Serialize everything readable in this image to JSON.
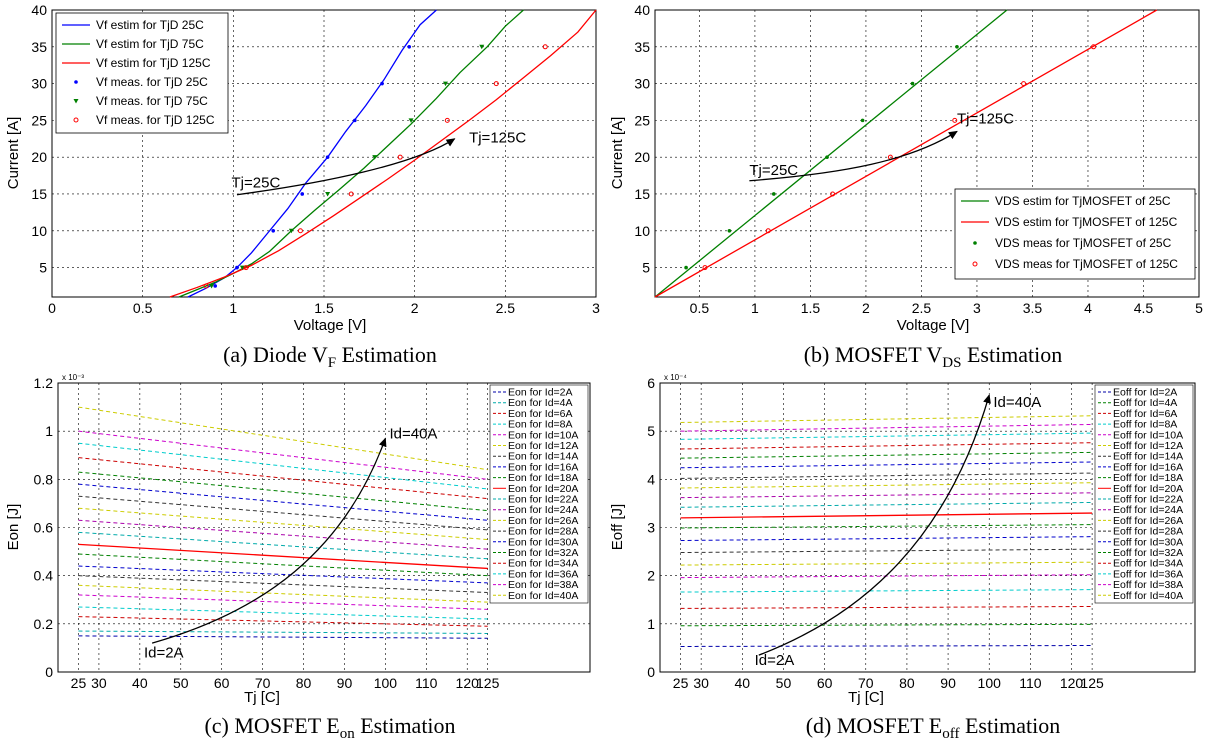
{
  "chart_data": [
    {
      "id": "a",
      "type": "line",
      "caption": "(a) Diode VF Estimation",
      "caption_main": "(a) Diode V",
      "caption_sub": "F",
      "caption_tail": " Estimation",
      "xlabel": "Voltage [V]",
      "ylabel": "Current [A]",
      "xlim": [
        0,
        3
      ],
      "ylim": [
        1,
        40
      ],
      "xticks": [
        "0",
        "0.5",
        "1",
        "1.5",
        "2",
        "2.5",
        "3"
      ],
      "yticks": [
        "5",
        "10",
        "15",
        "20",
        "25",
        "30",
        "35",
        "40"
      ],
      "grid": true,
      "legend_position": "top-left",
      "series": [
        {
          "name": "Vf estim for TjD 25C",
          "style": "line",
          "color": "#0000ff",
          "x": [
            0.75,
            0.85,
            0.95,
            1.02,
            1.1,
            1.2,
            1.3,
            1.4,
            1.52,
            1.62,
            1.73,
            1.83,
            1.93,
            2.03,
            2.12
          ],
          "y": [
            1,
            2.2,
            3.6,
            5,
            7,
            10,
            13,
            16.5,
            20,
            23.5,
            27,
            30.5,
            34.5,
            38,
            40
          ]
        },
        {
          "name": "Vf estim for TjD 75C",
          "style": "line",
          "color": "#008000",
          "x": [
            0.7,
            0.8,
            0.9,
            1.0,
            1.1,
            1.2,
            1.32,
            1.45,
            1.58,
            1.72,
            1.85,
            1.98,
            2.12,
            2.25,
            2.4,
            2.5,
            2.6
          ],
          "y": [
            1,
            2.0,
            3.0,
            4.2,
            5.5,
            7.2,
            10,
            12.8,
            15.5,
            18.5,
            21.5,
            24.5,
            28,
            31.5,
            35,
            37.8,
            40
          ]
        },
        {
          "name": "Vf estim for TjD 125C",
          "style": "line",
          "color": "#ff0000",
          "x": [
            0.65,
            0.8,
            0.95,
            1.1,
            1.25,
            1.4,
            1.55,
            1.7,
            1.85,
            2.0,
            2.15,
            2.3,
            2.45,
            2.6,
            2.75,
            2.9,
            3.0
          ],
          "y": [
            1,
            2.3,
            3.7,
            5.3,
            7.3,
            9.6,
            12,
            14.5,
            17,
            19.6,
            22.3,
            25,
            27.8,
            30.8,
            33.8,
            37,
            40
          ]
        },
        {
          "name": "Vf meas. for TjD 25C",
          "style": "dot",
          "color": "#0000ff",
          "x": [
            0.9,
            1.02,
            1.22,
            1.38,
            1.52,
            1.67,
            1.82,
            1.97
          ],
          "y": [
            2.5,
            5,
            10,
            15,
            20,
            25,
            30,
            35
          ]
        },
        {
          "name": "Vf meas. for TjD 75C",
          "style": "triangle",
          "color": "#008000",
          "x": [
            0.88,
            1.05,
            1.32,
            1.52,
            1.78,
            1.98,
            2.17,
            2.37
          ],
          "y": [
            2.5,
            5,
            10,
            15,
            20,
            25,
            30,
            35
          ]
        },
        {
          "name": "Vf meas. for TjD 125C",
          "style": "circle",
          "color": "#ff0000",
          "x": [
            0.85,
            1.07,
            1.37,
            1.65,
            1.92,
            2.18,
            2.45,
            2.72
          ],
          "y": [
            2.5,
            5,
            10,
            15,
            20,
            25,
            30,
            35
          ]
        }
      ],
      "annotations": [
        {
          "text": "Tj=25C",
          "x": 0.99,
          "y": 15.9
        },
        {
          "text": "Tj=125C",
          "x": 2.3,
          "y": 22
        }
      ],
      "arrow": {
        "x": [
          1.02,
          1.5,
          2.0,
          2.22
        ],
        "y": [
          14.9,
          16.5,
          19,
          22.5
        ]
      }
    },
    {
      "id": "b",
      "type": "line",
      "caption": "(b) MOSFET VDS Estimation",
      "caption_main": "(b) MOSFET V",
      "caption_sub": "DS",
      "caption_tail": " Estimation",
      "xlabel": "Voltage [V]",
      "ylabel": "Current [A]",
      "xlim": [
        0.1,
        5.0
      ],
      "ylim": [
        1,
        40
      ],
      "xticks": [
        "0.5",
        "1",
        "1.5",
        "2",
        "2.5",
        "3",
        "3.5",
        "4",
        "4.5",
        "5"
      ],
      "yticks": [
        "5",
        "10",
        "15",
        "20",
        "25",
        "30",
        "35",
        "40"
      ],
      "grid": true,
      "legend_position": "bottom-right",
      "series": [
        {
          "name": "VDS estim for TjMOSFET of 25C",
          "style": "line",
          "color": "#008000",
          "x": [
            0.1,
            3.27
          ],
          "y": [
            1,
            40
          ]
        },
        {
          "name": "VDS estim for TjMOSFET of 125C",
          "style": "line",
          "color": "#ff0000",
          "x": [
            0.1,
            4.62
          ],
          "y": [
            1,
            40
          ]
        },
        {
          "name": "VDS meas for TjMOSFET of 25C",
          "style": "dot",
          "color": "#008000",
          "x": [
            0.38,
            0.77,
            1.17,
            1.65,
            1.97,
            2.42,
            2.82
          ],
          "y": [
            5,
            10,
            15,
            20,
            25,
            30,
            35
          ]
        },
        {
          "name": "VDS meas for TjMOSFET of 125C",
          "style": "circle",
          "color": "#ff0000",
          "x": [
            0.55,
            1.12,
            1.7,
            2.22,
            2.8,
            3.42,
            4.05
          ],
          "y": [
            5,
            10,
            15,
            20,
            25,
            30,
            35
          ]
        }
      ],
      "annotations": [
        {
          "text": "Tj=25C",
          "x": 0.95,
          "y": 17.6
        },
        {
          "text": "Tj=125C",
          "x": 2.82,
          "y": 24.6
        }
      ],
      "arrow": {
        "x": [
          0.95,
          1.8,
          2.4,
          2.82
        ],
        "y": [
          16.8,
          17.8,
          19.5,
          23.5
        ]
      }
    },
    {
      "id": "c",
      "type": "line",
      "caption": "(c) MOSFET Eon Estimation",
      "caption_main": "(c) MOSFET E",
      "caption_sub": "on",
      "caption_tail": " Estimation",
      "xlabel": "Tj [C]",
      "ylabel": "Eon [J]",
      "exponent_label": "x 10⁻³",
      "xlim": [
        20,
        150
      ],
      "ylim": [
        0,
        1.2
      ],
      "xticks": [
        "25",
        "30",
        "40",
        "50",
        "60",
        "70",
        "80",
        "90",
        "100",
        "110",
        "120",
        "125"
      ],
      "yticks": [
        "0",
        "0.2",
        "0.4",
        "0.6",
        "0.8",
        "1",
        "1.2"
      ],
      "grid": true,
      "legend_position": "top-right",
      "x_start": 25,
      "x_end": 125,
      "series": [
        {
          "name": "Eon for Id=2A",
          "color": "#0000aa",
          "y25": 0.15,
          "y125": 0.14
        },
        {
          "name": "Eon for Id=4A",
          "color": "#00aaaa",
          "y25": 0.17,
          "y125": 0.16
        },
        {
          "name": "Eon for Id=6A",
          "color": "#cc0000",
          "y25": 0.23,
          "y125": 0.19
        },
        {
          "name": "Eon for Id=8A",
          "color": "#00cccc",
          "y25": 0.27,
          "y125": 0.22
        },
        {
          "name": "Eon for Id=10A",
          "color": "#cc00cc",
          "y25": 0.32,
          "y125": 0.26
        },
        {
          "name": "Eon for Id=12A",
          "color": "#cccc00",
          "y25": 0.36,
          "y125": 0.29
        },
        {
          "name": "Eon for Id=14A",
          "color": "#333333",
          "y25": 0.4,
          "y125": 0.33
        },
        {
          "name": "Eon for Id=16A",
          "color": "#0000cc",
          "y25": 0.44,
          "y125": 0.37
        },
        {
          "name": "Eon for Id=18A",
          "color": "#008000",
          "y25": 0.49,
          "y125": 0.4
        },
        {
          "name": "Eon for Id=20A",
          "color": "#ff0000",
          "y25": 0.53,
          "y125": 0.43,
          "solid": true
        },
        {
          "name": "Eon for Id=22A",
          "color": "#00aaaa",
          "y25": 0.58,
          "y125": 0.47
        },
        {
          "name": "Eon for Id=24A",
          "color": "#aa00aa",
          "y25": 0.63,
          "y125": 0.51
        },
        {
          "name": "Eon for Id=26A",
          "color": "#cccc00",
          "y25": 0.68,
          "y125": 0.55
        },
        {
          "name": "Eon for Id=28A",
          "color": "#333333",
          "y25": 0.73,
          "y125": 0.59
        },
        {
          "name": "Eon for Id=30A",
          "color": "#0000cc",
          "y25": 0.78,
          "y125": 0.63
        },
        {
          "name": "Eon for Id=32A",
          "color": "#008000",
          "y25": 0.83,
          "y125": 0.67
        },
        {
          "name": "Eon for Id=34A",
          "color": "#cc0000",
          "y25": 0.89,
          "y125": 0.72
        },
        {
          "name": "Eon for Id=36A",
          "color": "#00cccc",
          "y25": 0.95,
          "y125": 0.76
        },
        {
          "name": "Eon for Id=38A",
          "color": "#cc00cc",
          "y25": 1.0,
          "y125": 0.8
        },
        {
          "name": "Eon for Id=40A",
          "color": "#cccc00",
          "y25": 1.1,
          "y125": 0.84
        }
      ],
      "annotations": [
        {
          "text": "Id=2A",
          "x": 41,
          "y": 0.06
        },
        {
          "text": "Id=40A",
          "x": 101,
          "y": 0.97
        }
      ],
      "arrow": {
        "x": [
          43,
          70,
          90,
          100
        ],
        "y": [
          0.12,
          0.25,
          0.5,
          0.97
        ]
      }
    },
    {
      "id": "d",
      "type": "line",
      "caption": "(d) MOSFET Eoff Estimation",
      "caption_main": "(d) MOSFET E",
      "caption_sub": "off",
      "caption_tail": " Estimation",
      "xlabel": "Tj [C]",
      "ylabel": "Eoff [J]",
      "exponent_label": "x 10⁻⁴",
      "xlim": [
        20,
        150
      ],
      "ylim": [
        0,
        6
      ],
      "xticks": [
        "25",
        "30",
        "40",
        "50",
        "60",
        "70",
        "80",
        "90",
        "100",
        "110",
        "120",
        "125"
      ],
      "yticks": [
        "0",
        "1",
        "2",
        "3",
        "4",
        "5",
        "6"
      ],
      "grid": true,
      "legend_position": "top-right",
      "x_start": 25,
      "x_end": 125,
      "series": [
        {
          "name": "Eoff for Id=2A",
          "color": "#0000aa",
          "y25": 0.53,
          "y125": 0.55
        },
        {
          "name": "Eoff for Id=4A",
          "color": "#008000",
          "y25": 0.96,
          "y125": 0.99
        },
        {
          "name": "Eoff for Id=6A",
          "color": "#cc0000",
          "y25": 1.32,
          "y125": 1.36
        },
        {
          "name": "Eoff for Id=8A",
          "color": "#00cccc",
          "y25": 1.66,
          "y125": 1.71
        },
        {
          "name": "Eoff for Id=10A",
          "color": "#cc00cc",
          "y25": 1.96,
          "y125": 2.02
        },
        {
          "name": "Eoff for Id=12A",
          "color": "#cccc00",
          "y25": 2.22,
          "y125": 2.28
        },
        {
          "name": "Eoff for Id=14A",
          "color": "#333333",
          "y25": 2.48,
          "y125": 2.55
        },
        {
          "name": "Eoff for Id=16A",
          "color": "#0000cc",
          "y25": 2.73,
          "y125": 2.81
        },
        {
          "name": "Eoff for Id=18A",
          "color": "#008000",
          "y25": 2.99,
          "y125": 3.06
        },
        {
          "name": "Eoff for Id=20A",
          "color": "#ff0000",
          "y25": 3.2,
          "y125": 3.3,
          "solid": true
        },
        {
          "name": "Eoff for Id=22A",
          "color": "#00aaaa",
          "y25": 3.42,
          "y125": 3.52
        },
        {
          "name": "Eoff for Id=24A",
          "color": "#aa00aa",
          "y25": 3.62,
          "y125": 3.72
        },
        {
          "name": "Eoff for Id=26A",
          "color": "#cccc00",
          "y25": 3.82,
          "y125": 3.93
        },
        {
          "name": "Eoff for Id=28A",
          "color": "#333333",
          "y25": 4.02,
          "y125": 4.13
        },
        {
          "name": "Eoff for Id=30A",
          "color": "#0000cc",
          "y25": 4.24,
          "y125": 4.36
        },
        {
          "name": "Eoff for Id=32A",
          "color": "#008000",
          "y25": 4.44,
          "y125": 4.56
        },
        {
          "name": "Eoff for Id=34A",
          "color": "#cc0000",
          "y25": 4.63,
          "y125": 4.76
        },
        {
          "name": "Eoff for Id=36A",
          "color": "#00cccc",
          "y25": 4.83,
          "y125": 4.96
        },
        {
          "name": "Eoff for Id=38A",
          "color": "#cc00cc",
          "y25": 5.0,
          "y125": 5.14
        },
        {
          "name": "Eoff for Id=40A",
          "color": "#cccc00",
          "y25": 5.18,
          "y125": 5.32
        }
      ],
      "annotations": [
        {
          "text": "Id=2A",
          "x": 43,
          "y": 0.15
        },
        {
          "text": "Id=40A",
          "x": 101,
          "y": 5.5
        }
      ],
      "arrow": {
        "x": [
          44,
          70,
          90,
          100
        ],
        "y": [
          0.35,
          1.2,
          2.8,
          5.75
        ]
      }
    }
  ]
}
